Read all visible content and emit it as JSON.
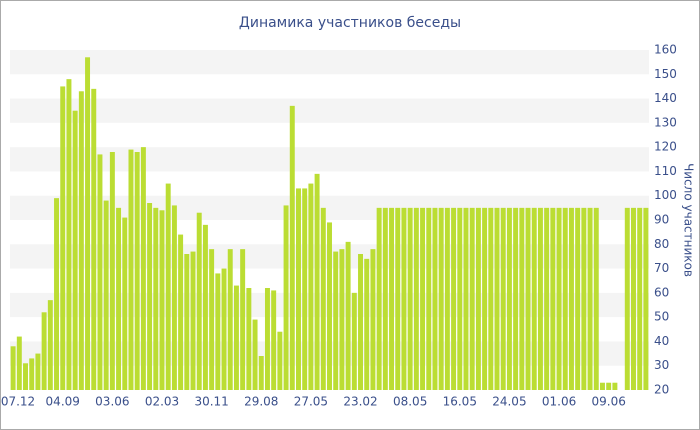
{
  "chart_data": {
    "type": "bar",
    "title": "Динамика участников беседы",
    "y_axis_label": "Число участников",
    "color": "#bbdd33",
    "grid": true,
    "y_axis_side": "right",
    "ylim": [
      20,
      160
    ],
    "yticks": [
      20,
      30,
      40,
      50,
      60,
      70,
      80,
      90,
      100,
      110,
      120,
      130,
      140,
      150,
      160
    ],
    "categories": [
      "07.12",
      null,
      null,
      null,
      null,
      null,
      null,
      null,
      "04.09",
      null,
      null,
      null,
      null,
      null,
      null,
      null,
      "03.06",
      null,
      null,
      null,
      null,
      null,
      null,
      null,
      "02.03",
      null,
      null,
      null,
      null,
      null,
      null,
      null,
      "30.11",
      null,
      null,
      null,
      null,
      null,
      null,
      null,
      "29.08",
      null,
      null,
      null,
      null,
      null,
      null,
      null,
      "27.05",
      null,
      null,
      null,
      null,
      null,
      null,
      null,
      "23.02",
      null,
      null,
      null,
      null,
      null,
      null,
      null,
      "08.05",
      null,
      null,
      null,
      null,
      null,
      null,
      null,
      "16.05",
      null,
      null,
      null,
      null,
      null,
      null,
      null,
      "24.05",
      null,
      null,
      null,
      null,
      null,
      null,
      null,
      "01.06",
      null,
      null,
      null,
      null,
      null,
      null,
      null,
      "09.06",
      null,
      null,
      null,
      null,
      null,
      null
    ],
    "values": [
      38,
      42,
      31,
      33,
      35,
      52,
      57,
      99,
      145,
      148,
      135,
      143,
      157,
      144,
      117,
      98,
      118,
      95,
      91,
      119,
      118,
      120,
      97,
      95,
      94,
      105,
      96,
      84,
      76,
      77,
      93,
      88,
      78,
      68,
      70,
      78,
      63,
      78,
      62,
      49,
      34,
      62,
      61,
      44,
      96,
      137,
      103,
      103,
      105,
      109,
      95,
      89,
      77,
      78,
      81,
      60,
      76,
      74,
      78,
      95,
      95,
      95,
      95,
      95,
      95,
      95,
      95,
      95,
      95,
      95,
      95,
      95,
      95,
      95,
      95,
      95,
      95,
      95,
      95,
      95,
      95,
      95,
      95,
      95,
      95,
      95,
      95,
      95,
      95,
      95,
      95,
      95,
      95,
      95,
      95,
      23,
      23,
      23,
      null,
      95,
      95,
      95,
      95
    ]
  }
}
